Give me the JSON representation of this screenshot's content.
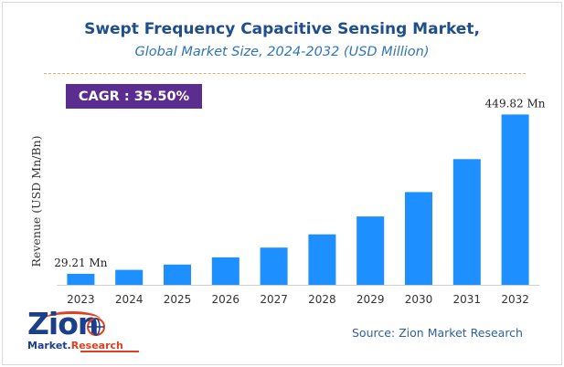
{
  "header": {
    "title": "Swept Frequency Capacitive Sensing Market,",
    "subtitle": "Global Market Size, 2024-2032 (USD Million)"
  },
  "cagr": {
    "label": "CAGR :",
    "value": "35.50%"
  },
  "source": {
    "text": "Source: Zion Market Research"
  },
  "logo": {
    "line1": "Zion",
    "line2a": "Market.",
    "line2b": "Research"
  },
  "colors": {
    "bar": "#1e8fff",
    "title": "#1f4e8c",
    "subtitle": "#2e75b6",
    "cagr_bg": "#5b2d8e",
    "dashline": "#f4a460"
  },
  "chart_data": {
    "type": "bar",
    "title": "Swept Frequency Capacitive Sensing Market, Global Market Size, 2024-2032 (USD Million)",
    "xlabel": "",
    "ylabel": "Revenue (USD Mn/Bn)",
    "categories": [
      "2023",
      "2024",
      "2025",
      "2026",
      "2027",
      "2028",
      "2029",
      "2030",
      "2031",
      "2032"
    ],
    "values": [
      29.21,
      39.6,
      53.6,
      72.6,
      98.4,
      133.3,
      180.6,
      244.8,
      332.0,
      449.82
    ],
    "ylim": [
      0,
      470
    ],
    "grid": false,
    "annotations": [
      {
        "index": 0,
        "text": "29.21 Mn"
      },
      {
        "index": 9,
        "text": "449.82 Mn"
      }
    ]
  }
}
